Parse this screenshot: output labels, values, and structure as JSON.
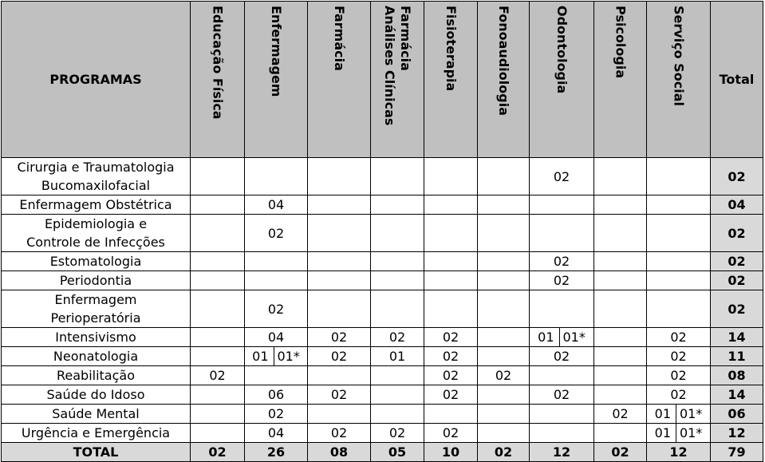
{
  "table": {
    "header": [
      "PROGRAMAS",
      "Educação Física",
      "Enfermagem",
      "Farmácia",
      "Farmácia\nAnálises Clínicas",
      "Fisioterapia",
      "Fonoaudiologia",
      "Odontologia",
      "Psicologia",
      "Serviço Social",
      "Total"
    ],
    "rows": [
      [
        "Cirurgia e Traumatologia\nBucomaxilofacial",
        null,
        null,
        null,
        null,
        null,
        null,
        "02",
        null,
        null,
        "02"
      ],
      [
        "Enfermagem Obstétrica",
        null,
        "04",
        null,
        null,
        null,
        null,
        null,
        null,
        null,
        "04"
      ],
      [
        "Epidemiologia e\nControle de Infecções",
        null,
        "02",
        null,
        null,
        null,
        null,
        null,
        null,
        null,
        "02"
      ],
      [
        "Estomatologia",
        null,
        null,
        null,
        null,
        null,
        null,
        "02",
        null,
        null,
        "02"
      ],
      [
        "Periodontia",
        null,
        null,
        null,
        null,
        null,
        null,
        "02",
        null,
        null,
        "02"
      ],
      [
        "Enfermagem\nPerioperatória",
        null,
        "02",
        null,
        null,
        null,
        null,
        null,
        null,
        null,
        "02"
      ],
      [
        "Intensivismo",
        null,
        "04",
        "02",
        "02",
        "02",
        null,
        [
          "01",
          "01*"
        ],
        null,
        "02",
        "14"
      ],
      [
        "Neonatologia",
        null,
        [
          "01",
          "01*"
        ],
        "02",
        "01",
        "02",
        null,
        "02",
        null,
        "02",
        "11"
      ],
      [
        "Reabilitação",
        "02",
        null,
        null,
        null,
        "02",
        "02",
        null,
        null,
        "02",
        "08"
      ],
      [
        "Saúde do Idoso",
        null,
        "06",
        "02",
        null,
        "02",
        null,
        "02",
        null,
        "02",
        "14"
      ],
      [
        "Saúde Mental",
        null,
        "02",
        null,
        null,
        null,
        null,
        null,
        "02",
        [
          "01",
          "01*"
        ],
        "06"
      ],
      [
        "Urgência e Emergência",
        null,
        "04",
        "02",
        "02",
        "02",
        null,
        null,
        null,
        [
          "01",
          "01*"
        ],
        "12"
      ]
    ],
    "total_row": [
      "TOTAL",
      "02",
      "26",
      "08",
      "05",
      "10",
      "02",
      "12",
      "02",
      "12",
      "79"
    ]
  }
}
